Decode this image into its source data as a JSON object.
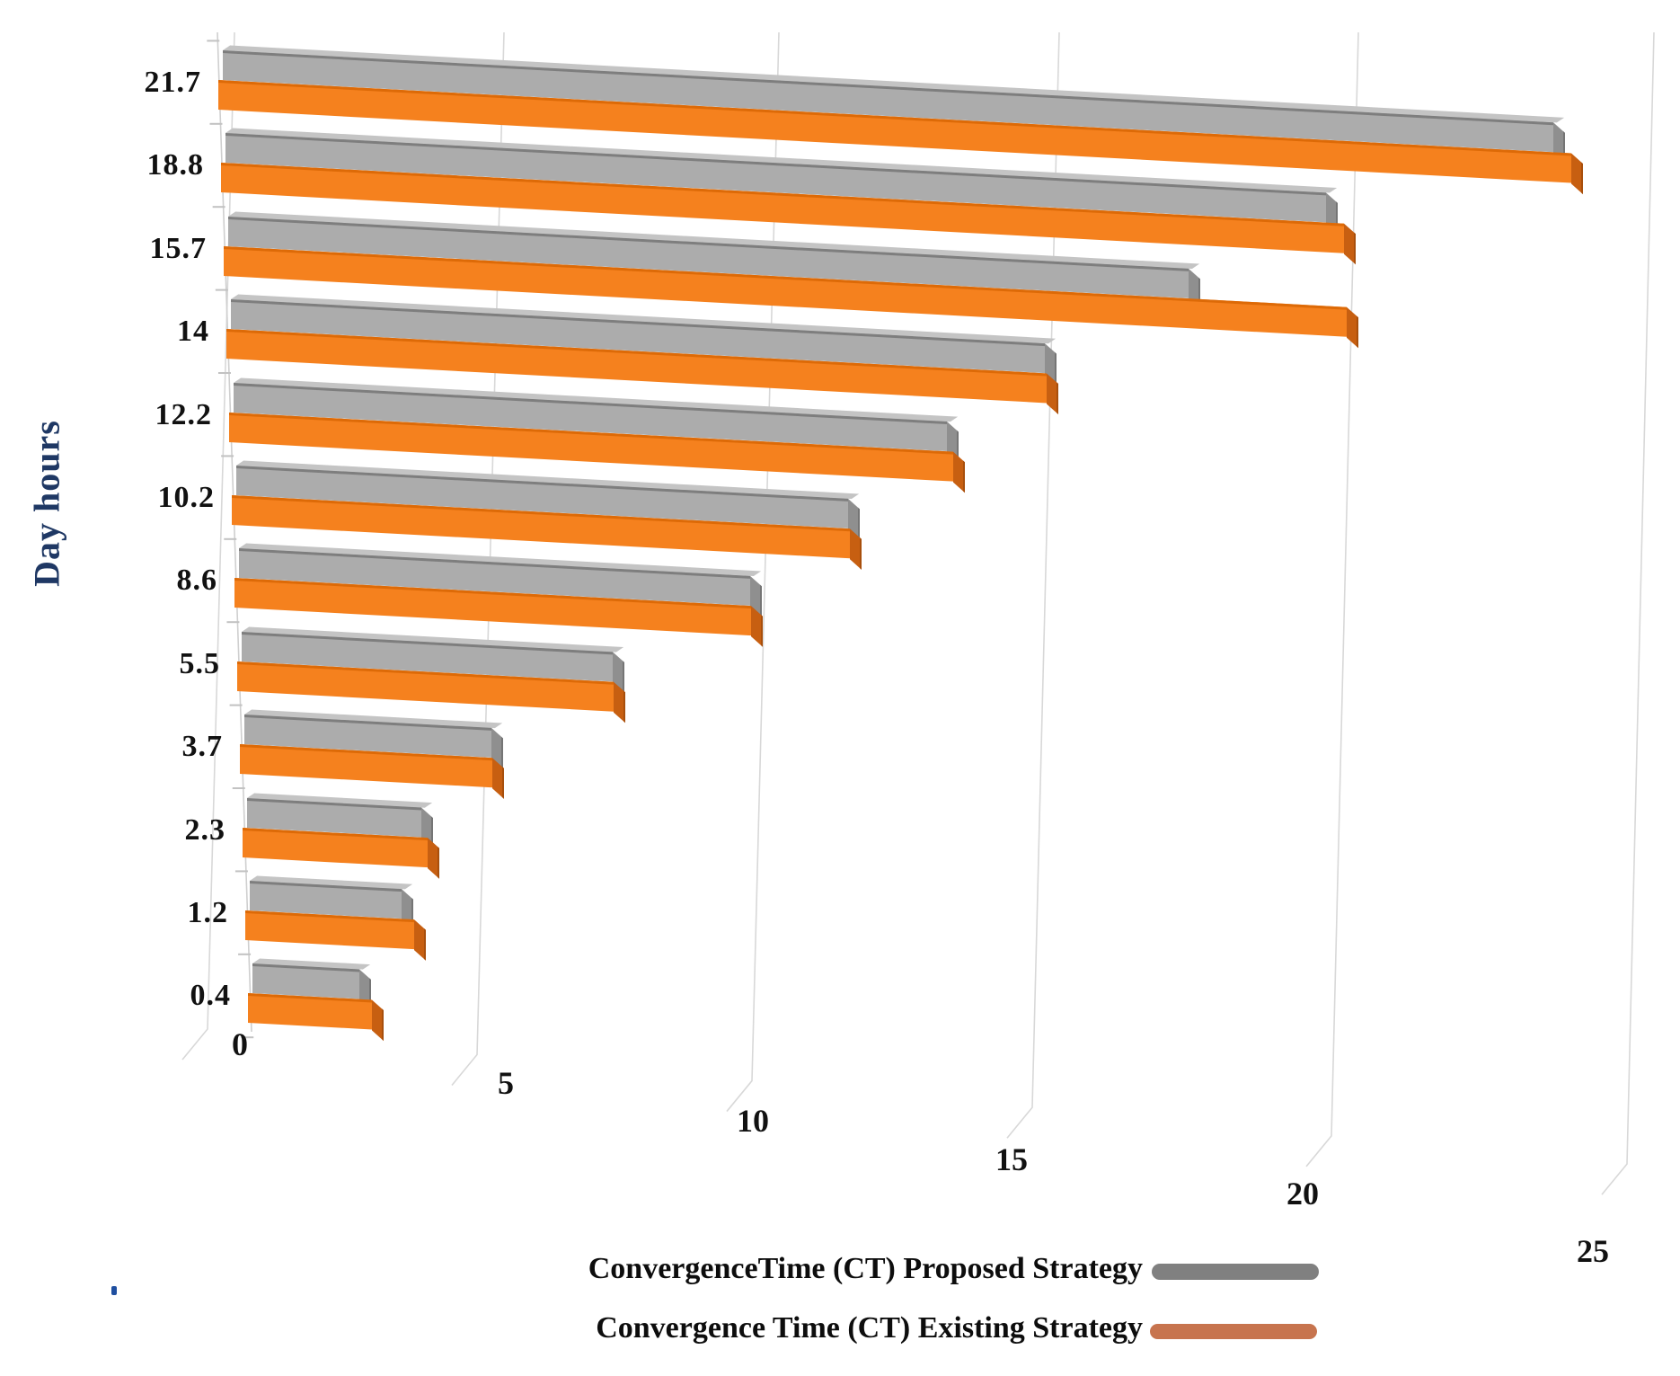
{
  "chart_data": {
    "type": "bar",
    "orientation": "horizontal",
    "style": "3d-perspective",
    "title": "",
    "xlabel": "",
    "ylabel": "Day hours",
    "categories": [
      "21.7",
      "18.8",
      "15.7",
      "14",
      "12.2",
      "10.2",
      "8.6",
      "5.5",
      "3.7",
      "2.3",
      "1.2",
      "0.4"
    ],
    "x_ticks": [
      "0",
      "5",
      "10",
      "15",
      "20",
      "25"
    ],
    "xlim": [
      0,
      25
    ],
    "grid": true,
    "legend_position": "bottom",
    "series": [
      {
        "name": "ConvergenceTime (CT) Proposed Strategy",
        "color": "#ACACAC",
        "values": [
          23.7,
          19.6,
          17.1,
          14.5,
          12.7,
          10.9,
          9.1,
          6.6,
          4.4,
          3.1,
          2.7,
          1.9
        ]
      },
      {
        "name": "Convergence Time (CT) Existing Strategy",
        "color": "#F5811E",
        "values": [
          24.1,
          20.0,
          20.0,
          14.6,
          12.9,
          11.0,
          9.2,
          6.7,
          4.5,
          3.3,
          3.0,
          2.2
        ]
      }
    ]
  },
  "axis": {
    "y_title": "Day hours",
    "tick_color": "#111111"
  },
  "legend": {
    "items": [
      {
        "label": "ConvergenceTime (CT) Proposed Strategy",
        "color": "#808080"
      },
      {
        "label": "Convergence Time (CT) Existing Strategy",
        "color": "#C7744E"
      }
    ]
  },
  "colors": {
    "bar_gray": "#ACACAC",
    "bar_orange": "#F5811E",
    "gridline": "#D8D8D8",
    "axis_title": "#1F3864"
  }
}
